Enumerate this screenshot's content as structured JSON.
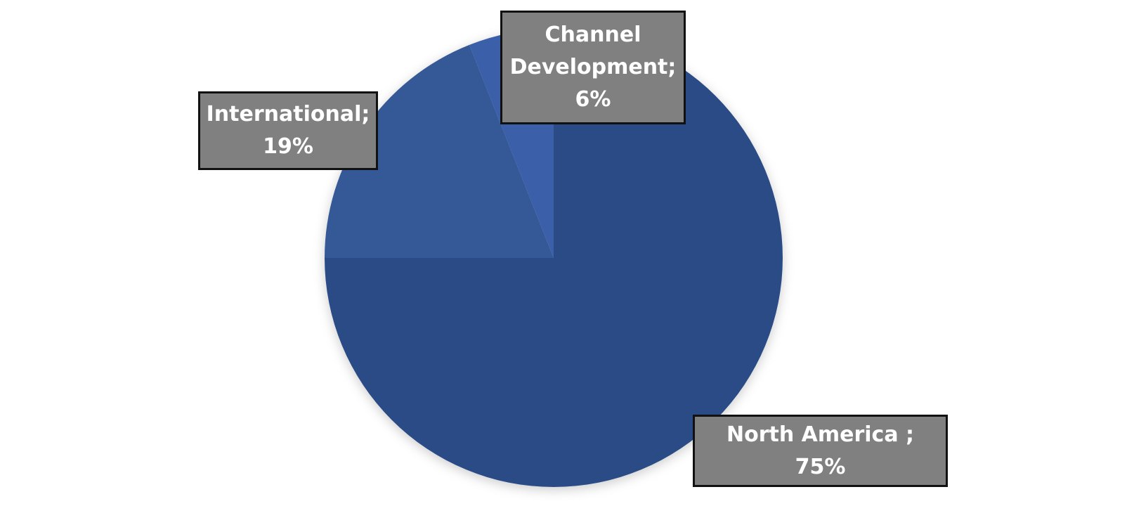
{
  "chart_data": {
    "type": "pie",
    "categories": [
      "North America ;",
      "International;",
      "Channel Development;"
    ],
    "values": [
      75,
      19,
      6
    ],
    "value_labels": [
      "75%",
      "19%",
      "6%"
    ],
    "colors": [
      "#2c4c85",
      "#345896",
      "#3a5fa8"
    ]
  }
}
